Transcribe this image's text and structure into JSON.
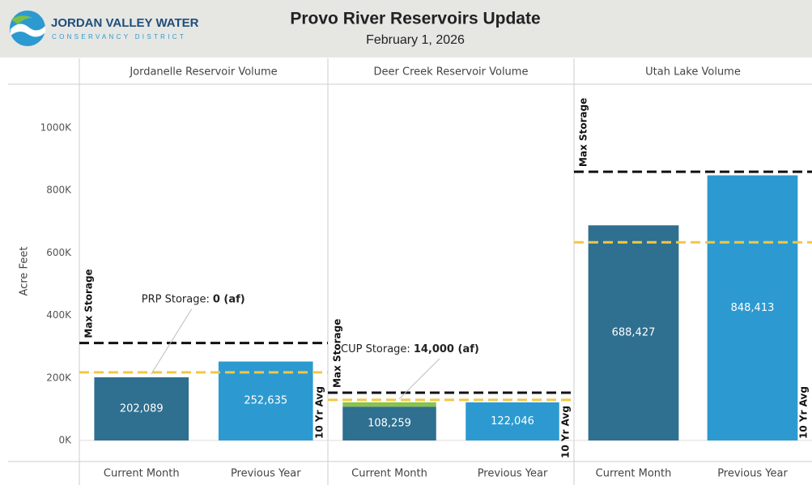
{
  "header": {
    "logo_title": "JORDAN VALLEY WATER",
    "logo_subtitle": "CONSERVANCY DISTRICT",
    "title": "Provo River Reservoirs Update",
    "subtitle": "February 1, 2026"
  },
  "chart_data": [
    {
      "type": "bar",
      "title": "Jordanelle Reservoir Volume",
      "y_label": "Acre Feet",
      "categories": [
        "Current Month",
        "Previous Year"
      ],
      "values": [
        202089,
        252635
      ],
      "value_labels": [
        "202,089",
        "252,635"
      ],
      "colors": [
        "#2f6f8f",
        "#2c9ad0"
      ],
      "ylim": [
        0,
        1140000
      ],
      "yticks": [
        {
          "value": 0,
          "label": "0K"
        },
        {
          "value": 200000,
          "label": "200K"
        },
        {
          "value": 400000,
          "label": "400K"
        },
        {
          "value": 600000,
          "label": "600K"
        },
        {
          "value": 800000,
          "label": "800K"
        },
        {
          "value": 1000000,
          "label": "1000K"
        }
      ],
      "max_storage": {
        "label": "Max Storage",
        "value": 312000
      },
      "average": {
        "label": "10 Yr Avg",
        "value": 218000
      },
      "annotation": {
        "label": "PRP Storage:",
        "value": 0,
        "value_label": "0 (af)",
        "color": "#8bc34a"
      }
    },
    {
      "type": "bar",
      "title": "Deer Creek Reservoir Volume",
      "categories": [
        "Current Month",
        "Previous Year"
      ],
      "values": [
        108259,
        122046
      ],
      "value_labels": [
        "108,259",
        "122,046"
      ],
      "colors": [
        "#2f6f8f",
        "#2c9ad0"
      ],
      "ylim": [
        0,
        1140000
      ],
      "max_storage": {
        "label": "Max Storage",
        "value": 153000
      },
      "average": {
        "label": "10 Yr Avg",
        "value": 130000
      },
      "annotation": {
        "label": "CUP Storage:",
        "value": 14000,
        "value_label": "14,000 (af)",
        "color": "#8bc34a"
      }
    },
    {
      "type": "bar",
      "title": "Utah Lake Volume",
      "categories": [
        "Current Month",
        "Previous Year"
      ],
      "values": [
        688427,
        848413
      ],
      "value_labels": [
        "688,427",
        "848,413"
      ],
      "colors": [
        "#2f6f8f",
        "#2c9ad0"
      ],
      "ylim": [
        0,
        1140000
      ],
      "max_storage": {
        "label": "Max Storage",
        "value": 860000
      },
      "average": {
        "label": "10 Yr Avg",
        "value": 634000
      }
    }
  ]
}
